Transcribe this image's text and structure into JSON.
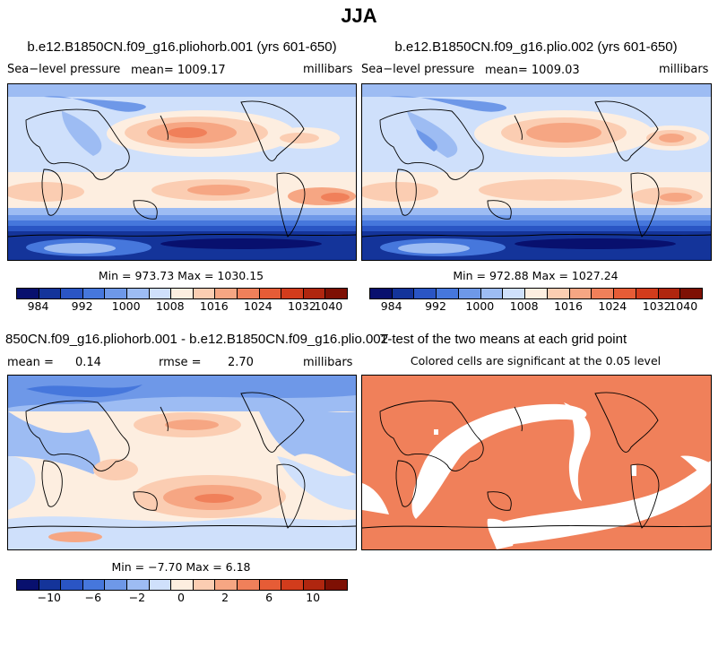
{
  "figure_title": "JJA",
  "panels": {
    "p1": {
      "title": "b.e12.B1850CN.f09_g16.pliohorb.001 (yrs 601-650)",
      "left_label": "Sea−level pressure",
      "center_label": "mean= 1009.17",
      "right_label": "millibars",
      "minmax": "Min = 973.73 Max = 1030.15"
    },
    "p2": {
      "title": "b.e12.B1850CN.f09_g16.plio.002 (yrs 601-650)",
      "left_label": "Sea−level pressure",
      "center_label": "mean= 1009.03",
      "right_label": "millibars",
      "minmax": "Min = 972.88 Max = 1027.24"
    },
    "p3": {
      "title": "850CN.f09_g16.pliohorb.001 - b.e12.B1850CN.f09_g16.plio.002",
      "left_label": "mean =",
      "mean_value": "0.14",
      "rmse_label": "rmse =",
      "rmse_value": "2.70",
      "right_label": "millibars",
      "minmax": "Min = −7.70 Max = 6.18"
    },
    "p4": {
      "title": "T-test of the two means at each grid point",
      "subtitle": "Colored cells are significant at the 0.05 level"
    }
  },
  "colorbars": {
    "abs": {
      "labels": [
        "984",
        "992",
        "1000",
        "1008",
        "1016",
        "1024",
        "1032",
        "1040"
      ]
    },
    "diff": {
      "labels": [
        "−10",
        "−6",
        "−2",
        "0",
        "2",
        "6",
        "10"
      ]
    }
  },
  "palette": [
    "#08106e",
    "#14349a",
    "#2a55c4",
    "#4677dc",
    "#6e98e8",
    "#9dbcf3",
    "#cfe0fb",
    "#fdeee0",
    "#fbcdb2",
    "#f6a683",
    "#f0805a",
    "#e65c36",
    "#d23c1c",
    "#b0260f",
    "#7e1004"
  ],
  "chart_data": [
    {
      "type": "heatmap",
      "title": "b.e12.B1850CN.f09_g16.pliohorb.001 (yrs 601-650)",
      "variable": "Sea-level pressure",
      "units": "millibars",
      "mean": 1009.17,
      "min": 973.73,
      "max": 1030.15,
      "colorbar_ticks": [
        984,
        992,
        1000,
        1008,
        1016,
        1024,
        1032,
        1040
      ]
    },
    {
      "type": "heatmap",
      "title": "b.e12.B1850CN.f09_g16.plio.002 (yrs 601-650)",
      "variable": "Sea-level pressure",
      "units": "millibars",
      "mean": 1009.03,
      "min": 972.88,
      "max": 1027.24,
      "colorbar_ticks": [
        984,
        992,
        1000,
        1008,
        1016,
        1024,
        1032,
        1040
      ]
    },
    {
      "type": "heatmap",
      "title": "850CN.f09_g16.pliohorb.001 - b.e12.B1850CN.f09_g16.plio.002",
      "units": "millibars",
      "mean": 0.14,
      "rmse": 2.7,
      "min": -7.7,
      "max": 6.18,
      "colorbar_ticks": [
        -10,
        -6,
        -2,
        0,
        2,
        6,
        10
      ]
    },
    {
      "type": "heatmap",
      "title": "T-test of the two means at each grid point",
      "note": "Colored cells are significant at the 0.05 level",
      "significance_level": 0.05
    }
  ]
}
